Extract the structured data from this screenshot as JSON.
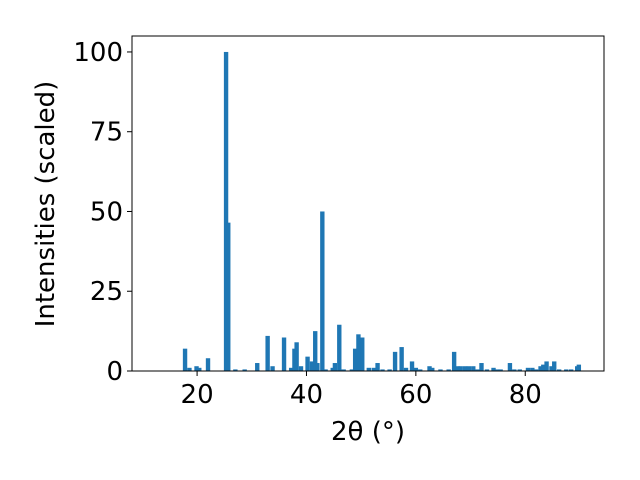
{
  "chart_data": {
    "type": "bar",
    "xlabel": "2θ (°)",
    "ylabel": "Intensities (scaled)",
    "color": "#1f77b4",
    "x": [
      17.8,
      18.6,
      19.9,
      20.4,
      22,
      25.3,
      25.7,
      27,
      28.7,
      31,
      32.9,
      33.8,
      35.9,
      37.2,
      37.8,
      38.2,
      39,
      40.2,
      41,
      41.6,
      42,
      42.9,
      43.5,
      44.8,
      45.2,
      46,
      46.8,
      48.3,
      48.9,
      49.5,
      50.2,
      51.4,
      52.3,
      53,
      53.9,
      55.2,
      56.2,
      57.4,
      58.2,
      59.3,
      60,
      60.8,
      62.5,
      63,
      64.5,
      66,
      67,
      67.6,
      68.2,
      69,
      69.7,
      70.5,
      71.3,
      72,
      73,
      74.2,
      74.9,
      75.5,
      77.2,
      78,
      79,
      80.5,
      81.3,
      82,
      82.8,
      83.3,
      83.9,
      84.8,
      85.3,
      86.2,
      87.5,
      88.4,
      89.5,
      89.8
    ],
    "values": [
      7,
      1,
      1.5,
      1,
      4,
      100,
      46.5,
      0.5,
      0.5,
      2.5,
      11,
      1.5,
      10.5,
      1,
      7,
      9,
      1.5,
      4.5,
      3,
      12.5,
      2.5,
      50,
      0.5,
      1,
      2.5,
      14.5,
      0.5,
      0.5,
      7,
      11.5,
      10.5,
      1,
      1,
      2.5,
      0.5,
      0.5,
      6,
      7.5,
      1,
      3,
      1,
      0.5,
      1.5,
      1,
      0.5,
      0.5,
      6,
      1.5,
      1.5,
      1.5,
      1.5,
      1.5,
      0.5,
      2.5,
      0.5,
      1,
      0.5,
      0.5,
      2.5,
      0.5,
      0.5,
      1,
      1,
      0.5,
      1.5,
      2,
      3,
      1.5,
      3,
      0.5,
      0.5,
      0.5,
      1.5,
      2
    ],
    "xlim": [
      8.1,
      94.4
    ],
    "ylim": [
      0,
      105
    ],
    "xticks": [
      20,
      40,
      60,
      80
    ],
    "yticks": [
      0,
      25,
      50,
      75,
      100
    ]
  }
}
